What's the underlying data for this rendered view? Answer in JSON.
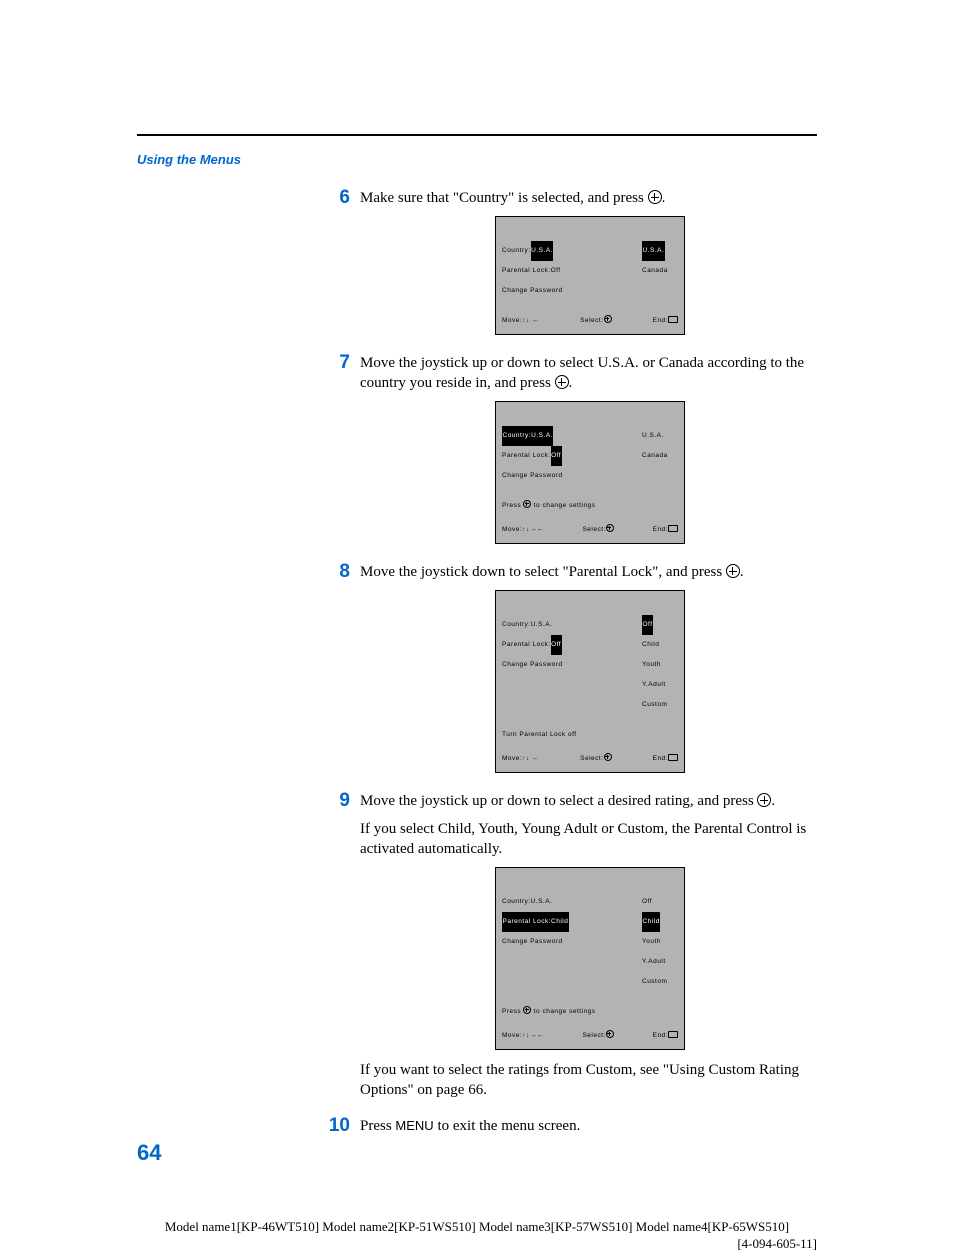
{
  "header": {
    "section_title": "Using the Menus"
  },
  "colors": {
    "accent": "#0066cc",
    "tv_bg": "#b3b3b3",
    "ink": "#000000"
  },
  "steps": {
    "s6": {
      "num": "6",
      "text": "Make sure that \"Country\" is selected, and press ",
      "tv": {
        "left": [
          {
            "label": "Country:",
            "value": "U.S.A.",
            "hl": "value"
          },
          {
            "label": "Parental Lock:",
            "value": "Off"
          },
          {
            "label": "Change Password",
            "value": ""
          }
        ],
        "right": [
          {
            "t": "U.S.A.",
            "sel": true
          },
          {
            "t": "Canada"
          }
        ],
        "footer": {
          "move": "Move:↑↓  ←",
          "select": "Select:",
          "end": "End:"
        }
      }
    },
    "s7": {
      "num": "7",
      "text_a": "Move the joystick up or down to select U.S.A. or Canada according to the country you reside in, and press ",
      "tv": {
        "left": [
          {
            "label": "Country:U.S.A.",
            "value": "",
            "hl": "label"
          },
          {
            "label": "Parental Lock:",
            "value": "Off",
            "hl": "value"
          },
          {
            "label": "Change Password",
            "value": ""
          }
        ],
        "right": [
          {
            "t": "U.S.A."
          },
          {
            "t": "Canada"
          }
        ],
        "hint_a": "Press ",
        "hint_b": " to change settings",
        "footer": {
          "move": "Move:↑↓→←",
          "select": "Select:",
          "end": "End:"
        }
      }
    },
    "s8": {
      "num": "8",
      "text": "Move the joystick down to select \"Parental Lock\", and press ",
      "tv": {
        "left": [
          {
            "label": "Country:",
            "value": "U.S.A."
          },
          {
            "label": "Parental Lock:",
            "value": "Off",
            "hl": "value"
          },
          {
            "label": "Change Password",
            "value": ""
          }
        ],
        "right": [
          {
            "t": "Off",
            "sel": true
          },
          {
            "t": "Child"
          },
          {
            "t": "Youth"
          },
          {
            "t": "Y.Adult"
          },
          {
            "t": "Custom"
          }
        ],
        "hint_a": "Turn Parental Lock off",
        "footer": {
          "move": "Move:↑↓  ←",
          "select": "Select:",
          "end": "End:"
        }
      }
    },
    "s9": {
      "num": "9",
      "text": "Move the joystick up or down to select a desired rating, and press ",
      "para2": "If you select Child, Youth, Young Adult or Custom, the Parental Control is activated automatically.",
      "tv": {
        "left": [
          {
            "label": "Country:",
            "value": "U.S.A."
          },
          {
            "label": "Parental Lock:Child",
            "value": "",
            "hl": "label"
          },
          {
            "label": "Change Password",
            "value": ""
          }
        ],
        "right": [
          {
            "t": "Off"
          },
          {
            "t": "Child",
            "sel": true
          },
          {
            "t": "Youth"
          },
          {
            "t": "Y.Adult"
          },
          {
            "t": "Custom"
          }
        ],
        "hint_a": "Press ",
        "hint_b": " to change settings",
        "footer": {
          "move": "Move:↑↓→←",
          "select": "Select:",
          "end": "End:"
        }
      },
      "para3": "If you want to select the ratings from Custom, see \"Using Custom Rating Options\" on page 66."
    },
    "s10": {
      "num": "10",
      "text_a": "Press ",
      "menu": "MENU",
      "text_b": " to exit the menu screen."
    }
  },
  "page_number": "64",
  "footer": {
    "line1": "Model name1[KP-46WT510] Model name2[KP-51WS510] Model name3[KP-57WS510] Model name4[KP-65WS510]",
    "line2": "[4-094-605-11]"
  }
}
